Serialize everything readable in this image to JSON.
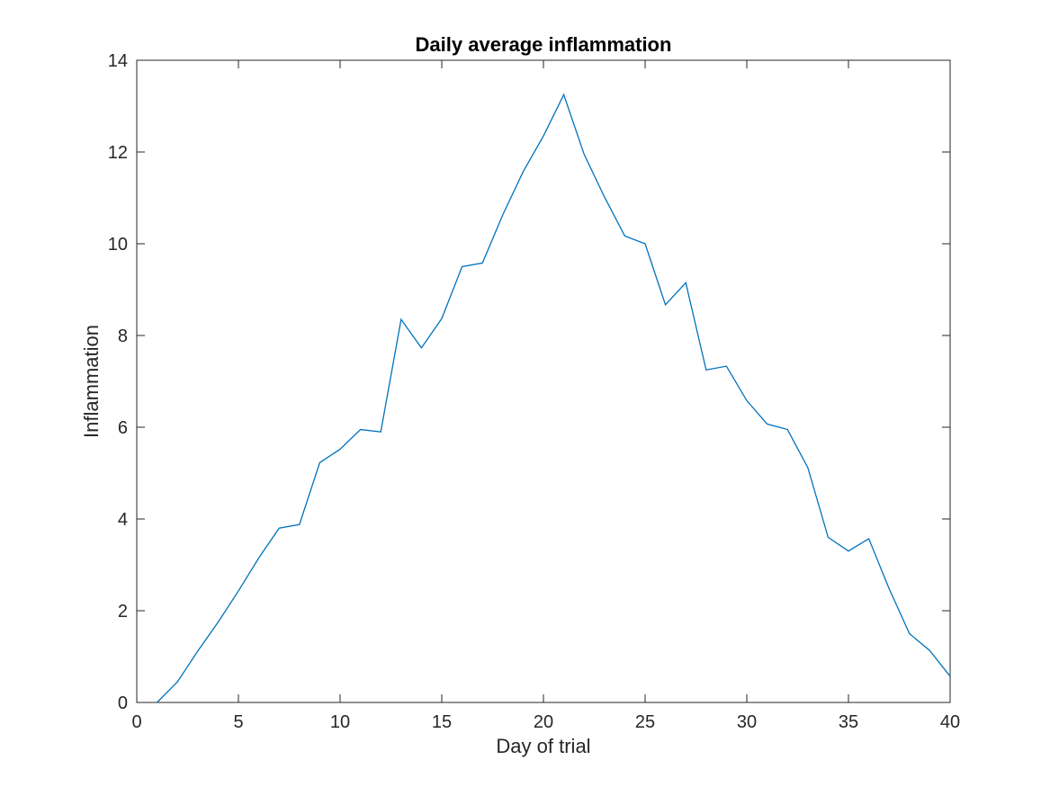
{
  "chart_data": {
    "type": "line",
    "title": "Daily average inflammation",
    "xlabel": "Day of trial",
    "ylabel": "Inflammation",
    "xlim": [
      0,
      40
    ],
    "ylim": [
      0,
      14
    ],
    "xticks": [
      "0",
      "5",
      "10",
      "15",
      "20",
      "25",
      "30",
      "35",
      "40"
    ],
    "yticks": [
      "0",
      "2",
      "4",
      "6",
      "8",
      "10",
      "12",
      "14"
    ],
    "grid": false,
    "box": true,
    "colors": {
      "line": "#0072BD",
      "axes": "#262626"
    },
    "x": [
      1,
      2,
      3,
      4,
      5,
      6,
      7,
      8,
      9,
      10,
      11,
      12,
      13,
      14,
      15,
      16,
      17,
      18,
      19,
      20,
      21,
      22,
      23,
      24,
      25,
      26,
      27,
      28,
      29,
      30,
      31,
      32,
      33,
      34,
      35,
      36,
      37,
      38,
      39,
      40
    ],
    "series": [
      {
        "values": [
          0.0,
          0.45,
          1.12,
          1.75,
          2.43,
          3.15,
          3.8,
          3.88,
          5.23,
          5.52,
          5.95,
          5.9,
          8.35,
          7.73,
          8.37,
          9.5,
          9.58,
          10.63,
          11.57,
          12.35,
          13.25,
          11.95,
          11.02,
          10.17,
          10.0,
          8.67,
          9.15,
          7.25,
          7.33,
          6.58,
          6.07,
          5.95,
          5.12,
          3.6,
          3.3,
          3.57,
          2.48,
          1.5,
          1.13,
          0.57
        ]
      }
    ]
  }
}
